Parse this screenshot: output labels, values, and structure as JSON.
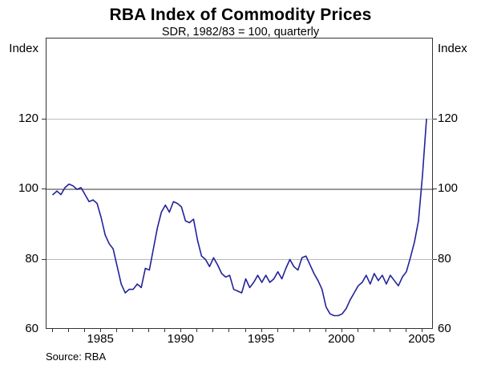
{
  "chart_data": {
    "type": "line",
    "title": "RBA Index of Commodity Prices",
    "subtitle": "SDR, 1982/83 = 100, quarterly",
    "y_axis_label_left": "Index",
    "y_axis_label_right": "Index",
    "source": "Source: RBA",
    "y_ticks": [
      60,
      80,
      100,
      120
    ],
    "x_ticks": [
      1985,
      1990,
      1995,
      2000,
      2005
    ],
    "xlim": [
      1981.6,
      2005.7
    ],
    "ylim": [
      60,
      143
    ],
    "base_gridline": 100,
    "minor_x_tick_interval_years": 1,
    "line_color": "#22229a",
    "gridline_color": "#b9b9b9",
    "base_gridline_color": "#333333",
    "series": [
      {
        "name": "RBA Index of Commodity Prices (SDR, 1982/83 = 100)",
        "frequency": "quarterly",
        "x_start": 1982.0,
        "x_step": 0.25,
        "values": [
          98.5,
          99.5,
          98.5,
          100.5,
          101.5,
          101,
          100,
          100.5,
          98.5,
          96.5,
          97,
          96,
          92,
          87,
          84.5,
          83,
          78,
          73,
          70.5,
          71.5,
          71.5,
          73,
          72,
          77.5,
          77,
          83,
          89,
          93.5,
          95.5,
          93.5,
          96.5,
          96,
          95,
          91,
          90.5,
          91.5,
          85.5,
          81,
          80,
          78,
          80.5,
          78.5,
          76,
          75,
          75.5,
          71.5,
          71,
          70.5,
          74.5,
          72,
          73.5,
          75.5,
          73.5,
          75.5,
          73.5,
          74.5,
          76.5,
          74.5,
          77.5,
          80,
          78,
          77,
          80.5,
          81,
          78.5,
          76,
          74,
          71.5,
          66.5,
          64.5,
          64,
          64,
          64.5,
          66,
          68.5,
          70.5,
          72.5,
          73.5,
          75.5,
          73,
          76,
          74,
          75.5,
          73,
          75.5,
          74,
          72.5,
          75,
          76.5,
          80.5,
          85,
          91,
          104,
          120
        ]
      }
    ]
  }
}
